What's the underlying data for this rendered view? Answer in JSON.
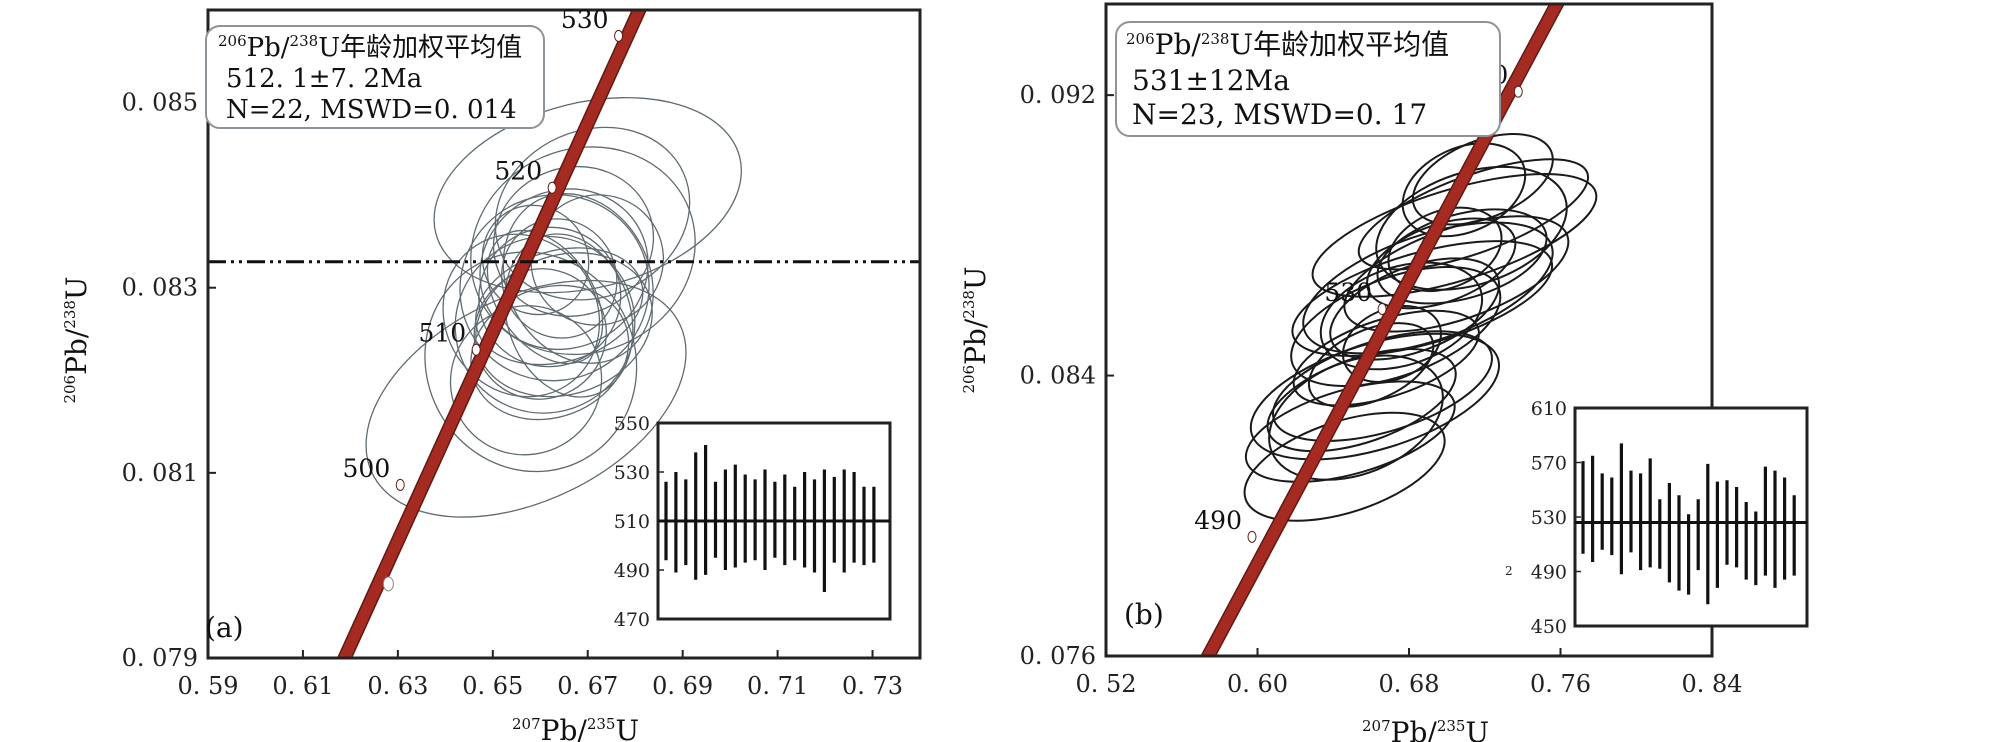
{
  "chart_data": [
    {
      "type": "scatter",
      "panel_label": "(a)",
      "xlabel": {
        "sup": "207",
        "text": "Pb/",
        "sup2": "235",
        "text2": "U"
      },
      "ylabel": {
        "sup": "206",
        "text": "Pb/",
        "sup2": "238",
        "text2": "U"
      },
      "xlim": [
        0.59,
        0.74
      ],
      "ylim": [
        0.079,
        0.086
      ],
      "xticks": [
        {
          "v": 0.59,
          "label": "0. 59"
        },
        {
          "v": 0.61,
          "label": "0. 61"
        },
        {
          "v": 0.63,
          "label": "0. 63"
        },
        {
          "v": 0.65,
          "label": "0. 65"
        },
        {
          "v": 0.67,
          "label": "0. 67"
        },
        {
          "v": 0.69,
          "label": "0. 69"
        },
        {
          "v": 0.71,
          "label": "0. 71"
        },
        {
          "v": 0.73,
          "label": "0. 73"
        }
      ],
      "yticks": [
        {
          "v": 0.079,
          "label": "0. 079"
        },
        {
          "v": 0.081,
          "label": "0. 081"
        },
        {
          "v": 0.083,
          "label": "0. 083"
        },
        {
          "v": 0.085,
          "label": "0. 085"
        }
      ],
      "concordia_labels": [
        {
          "age": "500",
          "x": 0.6305,
          "y": 0.08087
        },
        {
          "age": "510",
          "x": 0.6465,
          "y": 0.08233
        },
        {
          "age": "520",
          "x": 0.6625,
          "y": 0.08408
        },
        {
          "age": "530",
          "x": 0.6765,
          "y": 0.08572
        }
      ],
      "concordia_dots": [
        {
          "x": 0.628,
          "y": 0.0798
        }
      ],
      "concordia_line": [
        [
          0.617,
          0.0788
        ],
        [
          0.6915,
          0.0872
        ]
      ],
      "reference_line_y": 0.08328,
      "info_box": {
        "line1_sup": "206",
        "line1_a": "Pb/",
        "line1_sup2": "238",
        "line1_b": "U年龄加权平均值",
        "line2": "512. 1±7. 2Ma",
        "line3": "N=22, MSWD=0. 014"
      },
      "ellipses": [
        {
          "x": 0.665,
          "y": 0.0832,
          "rx": 0.018,
          "ry": 0.00085,
          "rot": -28
        },
        {
          "x": 0.661,
          "y": 0.0826,
          "rx": 0.019,
          "ry": 0.00095,
          "rot": -25
        },
        {
          "x": 0.658,
          "y": 0.0822,
          "rx": 0.022,
          "ry": 0.0012,
          "rot": -27
        },
        {
          "x": 0.662,
          "y": 0.0829,
          "rx": 0.015,
          "ry": 0.00075,
          "rot": -22
        },
        {
          "x": 0.667,
          "y": 0.0835,
          "rx": 0.017,
          "ry": 0.0008,
          "rot": -20
        },
        {
          "x": 0.671,
          "y": 0.0838,
          "rx": 0.021,
          "ry": 0.0009,
          "rot": -24
        },
        {
          "x": 0.66,
          "y": 0.0825,
          "rx": 0.014,
          "ry": 0.0007,
          "rot": -30
        },
        {
          "x": 0.664,
          "y": 0.0831,
          "rx": 0.012,
          "ry": 0.00065,
          "rot": -26
        },
        {
          "x": 0.669,
          "y": 0.0834,
          "rx": 0.024,
          "ry": 0.0011,
          "rot": -23
        },
        {
          "x": 0.657,
          "y": 0.082,
          "rx": 0.016,
          "ry": 0.0008,
          "rot": -29
        },
        {
          "x": 0.663,
          "y": 0.083,
          "rx": 0.02,
          "ry": 0.001,
          "rot": -24
        },
        {
          "x": 0.666,
          "y": 0.0827,
          "rx": 0.013,
          "ry": 0.0009,
          "rot": -18
        },
        {
          "x": 0.659,
          "y": 0.0833,
          "rx": 0.011,
          "ry": 0.0006,
          "rot": -32
        },
        {
          "x": 0.662,
          "y": 0.0823,
          "rx": 0.017,
          "ry": 0.0007,
          "rot": -21
        },
        {
          "x": 0.668,
          "y": 0.0831,
          "rx": 0.015,
          "ry": 0.00095,
          "rot": -27
        },
        {
          "x": 0.67,
          "y": 0.084,
          "rx": 0.033,
          "ry": 0.001,
          "rot": -14
        },
        {
          "x": 0.661,
          "y": 0.0829,
          "rx": 0.01,
          "ry": 0.0008,
          "rot": -35
        },
        {
          "x": 0.664,
          "y": 0.0828,
          "rx": 0.018,
          "ry": 0.0006,
          "rot": -16
        },
        {
          "x": 0.656,
          "y": 0.0827,
          "rx": 0.016,
          "ry": 0.0009,
          "rot": -33
        },
        {
          "x": 0.672,
          "y": 0.0833,
          "rx": 0.014,
          "ry": 0.0007,
          "rot": -25
        },
        {
          "x": 0.657,
          "y": 0.0818,
          "rx": 0.036,
          "ry": 0.0011,
          "rot": -26
        },
        {
          "x": 0.665,
          "y": 0.0826,
          "rx": 0.019,
          "ry": 0.00075,
          "rot": -19
        }
      ],
      "inset": {
        "ylim": [
          470,
          550
        ],
        "yticks": [
          470,
          490,
          510,
          530,
          550
        ],
        "mean": 510,
        "bars": [
          {
            "lo": 494,
            "hi": 526
          },
          {
            "lo": 489,
            "hi": 530
          },
          {
            "lo": 492,
            "hi": 527
          },
          {
            "lo": 486,
            "hi": 538
          },
          {
            "lo": 488,
            "hi": 541
          },
          {
            "lo": 495,
            "hi": 526
          },
          {
            "lo": 490,
            "hi": 531
          },
          {
            "lo": 491,
            "hi": 533
          },
          {
            "lo": 493,
            "hi": 529
          },
          {
            "lo": 494,
            "hi": 527
          },
          {
            "lo": 490,
            "hi": 531
          },
          {
            "lo": 495,
            "hi": 526
          },
          {
            "lo": 492,
            "hi": 529
          },
          {
            "lo": 494,
            "hi": 524
          },
          {
            "lo": 491,
            "hi": 530
          },
          {
            "lo": 489,
            "hi": 527
          },
          {
            "lo": 481,
            "hi": 531
          },
          {
            "lo": 493,
            "hi": 528
          },
          {
            "lo": 489,
            "hi": 531
          },
          {
            "lo": 493,
            "hi": 530
          },
          {
            "lo": 492,
            "hi": 524
          },
          {
            "lo": 493,
            "hi": 524
          }
        ]
      }
    },
    {
      "type": "scatter",
      "panel_label": "(b)",
      "xlabel": {
        "sup": "207",
        "text": "Pb/",
        "sup2": "235",
        "text2": "U"
      },
      "ylabel": {
        "sup": "206",
        "text": "Pb/",
        "sup2": "238",
        "text2": "U"
      },
      "xlim": [
        0.52,
        0.84
      ],
      "ylim": [
        0.076,
        0.0946
      ],
      "xticks": [
        {
          "v": 0.52,
          "label": "0. 52"
        },
        {
          "v": 0.6,
          "label": "0. 60"
        },
        {
          "v": 0.68,
          "label": "0. 68"
        },
        {
          "v": 0.76,
          "label": "0. 76"
        },
        {
          "v": 0.84,
          "label": "0. 84"
        }
      ],
      "yticks": [
        {
          "v": 0.076,
          "label": "0. 076"
        },
        {
          "v": 0.084,
          "label": "0. 084"
        },
        {
          "v": 0.092,
          "label": "0. 092"
        }
      ],
      "concordia_labels": [
        {
          "age": "490",
          "x": 0.5971,
          "y": 0.0794
        },
        {
          "age": "530",
          "x": 0.6658,
          "y": 0.0859
        },
        {
          "age": "570",
          "x": 0.7377,
          "y": 0.0921
        }
      ],
      "concordia_dots": [],
      "concordia_line": [
        [
          0.572,
          0.0758
        ],
        [
          0.765,
          0.0953
        ]
      ],
      "reference_line_y": null,
      "info_box": {
        "line1_sup": "206",
        "line1_a": "Pb/",
        "line1_sup2": "238",
        "line1_b": "U年龄加权平均值",
        "line2": "531±12Ma",
        "line3": "N=23, MSWD=0. 17"
      },
      "ellipses": [
        {
          "x": 0.704,
          "y": 0.088,
          "rx": 0.078,
          "ry": 0.0013,
          "rot": -17
        },
        {
          "x": 0.714,
          "y": 0.0886,
          "rx": 0.064,
          "ry": 0.0011,
          "rot": -20
        },
        {
          "x": 0.709,
          "y": 0.0893,
          "rx": 0.034,
          "ry": 0.0012,
          "rot": -24
        },
        {
          "x": 0.713,
          "y": 0.0882,
          "rx": 0.052,
          "ry": 0.0016,
          "rot": -18
        },
        {
          "x": 0.699,
          "y": 0.0876,
          "rx": 0.031,
          "ry": 0.0011,
          "rot": -21
        },
        {
          "x": 0.705,
          "y": 0.0869,
          "rx": 0.062,
          "ry": 0.0013,
          "rot": -19
        },
        {
          "x": 0.708,
          "y": 0.0874,
          "rx": 0.046,
          "ry": 0.0012,
          "rot": -16
        },
        {
          "x": 0.673,
          "y": 0.0854,
          "rx": 0.058,
          "ry": 0.0014,
          "rot": -20
        },
        {
          "x": 0.668,
          "y": 0.0845,
          "rx": 0.051,
          "ry": 0.0011,
          "rot": -18
        },
        {
          "x": 0.671,
          "y": 0.0849,
          "rx": 0.027,
          "ry": 0.001,
          "rot": -23
        },
        {
          "x": 0.666,
          "y": 0.0837,
          "rx": 0.06,
          "ry": 0.0013,
          "rot": -17
        },
        {
          "x": 0.655,
          "y": 0.0833,
          "rx": 0.052,
          "ry": 0.0012,
          "rot": -19
        },
        {
          "x": 0.652,
          "y": 0.0828,
          "rx": 0.048,
          "ry": 0.0016,
          "rot": -22
        },
        {
          "x": 0.649,
          "y": 0.0824,
          "rx": 0.057,
          "ry": 0.0012,
          "rot": -16
        },
        {
          "x": 0.646,
          "y": 0.0814,
          "rx": 0.055,
          "ry": 0.0013,
          "rot": -18
        },
        {
          "x": 0.683,
          "y": 0.0859,
          "rx": 0.047,
          "ry": 0.0012,
          "rot": -21
        },
        {
          "x": 0.69,
          "y": 0.0865,
          "rx": 0.069,
          "ry": 0.0015,
          "rot": -19
        },
        {
          "x": 0.697,
          "y": 0.0872,
          "rx": 0.041,
          "ry": 0.0011,
          "rot": -20
        },
        {
          "x": 0.66,
          "y": 0.0843,
          "rx": 0.035,
          "ry": 0.001,
          "rot": -24
        },
        {
          "x": 0.676,
          "y": 0.0857,
          "rx": 0.044,
          "ry": 0.0014,
          "rot": -18
        },
        {
          "x": 0.719,
          "y": 0.0896,
          "rx": 0.039,
          "ry": 0.0011,
          "rot": -22
        },
        {
          "x": 0.687,
          "y": 0.0862,
          "rx": 0.071,
          "ry": 0.0013,
          "rot": -16
        },
        {
          "x": 0.662,
          "y": 0.0834,
          "rx": 0.068,
          "ry": 0.0015,
          "rot": -17
        }
      ],
      "inset": {
        "ylim": [
          450,
          610
        ],
        "yticks": [
          450,
          490,
          530,
          570,
          610
        ],
        "mean": 526,
        "side_mark": "2",
        "bars": [
          {
            "lo": 503,
            "hi": 571
          },
          {
            "lo": 497,
            "hi": 575
          },
          {
            "lo": 506,
            "hi": 562
          },
          {
            "lo": 502,
            "hi": 559
          },
          {
            "lo": 488,
            "hi": 584
          },
          {
            "lo": 504,
            "hi": 564
          },
          {
            "lo": 491,
            "hi": 562
          },
          {
            "lo": 493,
            "hi": 573
          },
          {
            "lo": 492,
            "hi": 543
          },
          {
            "lo": 482,
            "hi": 555
          },
          {
            "lo": 476,
            "hi": 546
          },
          {
            "lo": 473,
            "hi": 532
          },
          {
            "lo": 491,
            "hi": 543
          },
          {
            "lo": 466,
            "hi": 569
          },
          {
            "lo": 478,
            "hi": 556
          },
          {
            "lo": 495,
            "hi": 557
          },
          {
            "lo": 493,
            "hi": 552
          },
          {
            "lo": 484,
            "hi": 541
          },
          {
            "lo": 480,
            "hi": 534
          },
          {
            "lo": 487,
            "hi": 567
          },
          {
            "lo": 478,
            "hi": 564
          },
          {
            "lo": 484,
            "hi": 559
          },
          {
            "lo": 487,
            "hi": 546
          }
        ]
      }
    }
  ],
  "colors": {
    "concordia": "#a52a22",
    "concordia_edge": "#5e1a12",
    "ellipse_a": "#5f6b70",
    "ellipse_b": "#1a1a1a",
    "axis": "#222222"
  }
}
